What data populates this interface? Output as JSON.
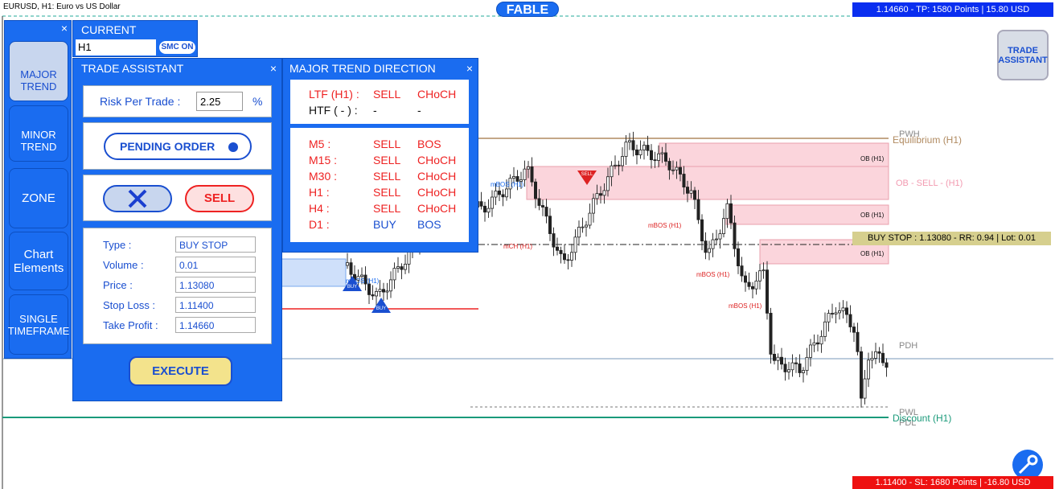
{
  "header": {
    "symbol": "EURUSD, H1:  Euro vs US Dollar",
    "logo": "FABLE",
    "tp": "1.14660 - TP: 1580 Points | 15.80 USD",
    "sl": "1.11400 - SL: 1680 Points | -16.80 USD"
  },
  "sidebar": {
    "close": "×",
    "buttons": [
      "MAJOR TREND",
      "MINOR TREND",
      "ZONE",
      "Chart Elements",
      "SINGLE TIMEFRAME"
    ]
  },
  "current": {
    "title": "CURRENT",
    "timeframe": "H1",
    "smc": "SMC ON"
  },
  "trade_assistant": {
    "title": "TRADE ASSISTANT",
    "close": "×",
    "risk_label": "Risk Per Trade :",
    "risk_value": "2.25",
    "risk_unit": "%",
    "pending": "PENDING ORDER",
    "sell": "SELL",
    "execute": "EXECUTE",
    "fields": [
      {
        "label": "Type :",
        "value": "BUY STOP"
      },
      {
        "label": "Volume :",
        "value": "0.01"
      },
      {
        "label": "Price :",
        "value": "1.13080"
      },
      {
        "label": "Stop Loss :",
        "value": "1.11400"
      },
      {
        "label": "Take Profit :",
        "value": "1.14660"
      }
    ]
  },
  "trend_panel": {
    "title": "MAJOR TREND DIRECTION",
    "close": "×",
    "main_rows": [
      [
        "LTF (H1) :",
        "SELL",
        "CHoCH"
      ],
      [
        "HTF ( - ) :",
        "-",
        "-"
      ]
    ],
    "rows": [
      [
        "M5 :",
        "SELL",
        "BOS"
      ],
      [
        "M15 :",
        "SELL",
        "CHoCH"
      ],
      [
        "M30 :",
        "SELL",
        "CHoCH"
      ],
      [
        "H1 :",
        "SELL",
        "CHoCH"
      ],
      [
        "H4 :",
        "SELL",
        "CHoCH"
      ],
      [
        "D1 :",
        "BUY",
        "BOS"
      ]
    ]
  },
  "chart_labels": {
    "pwh": "PWH",
    "equilibrium": "Equilibrium (H1)",
    "ob": "OB (H1)",
    "ob_sell": "OB - SELL -  (H1)",
    "buy_stop": "BUY STOP : 1.13080 - RR: 0.94 | Lot: 0.01",
    "pdh": "PDH",
    "pwl": "PWL",
    "pdl": "PDL",
    "discount": "Discount (H1)",
    "mbos": "mBOS (H1)",
    "mch": "mCH (H1)",
    "sell_marker": "SELL",
    "buy_marker": "BUY",
    "trade_button": "TRADE ASSISTANT"
  }
}
